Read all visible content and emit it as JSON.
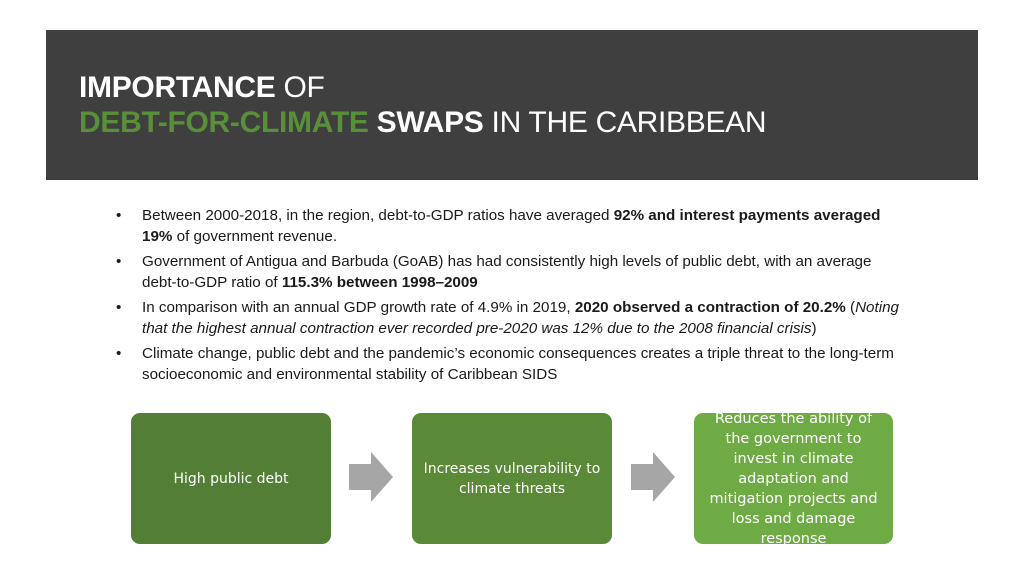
{
  "title": {
    "line1_bold": "IMPORTANCE",
    "line1_rest": " OF",
    "line2_green": "DEBT-FOR-CLIMATE",
    "line2_bold": " SWAPS",
    "line2_rest": " IN THE CARIBBEAN"
  },
  "bullets": [
    {
      "p1": "Between 2000-2018, in the region, debt-to-GDP ratios have averaged ",
      "b1": "92% and interest payments averaged 19%",
      "p2": " of government revenue."
    },
    {
      "p1": "Government of Antigua and Barbuda (GoAB) has had consistently high levels of public debt, with an average debt-to-GDP ratio of ",
      "b1": "115.3% between 1998–2009"
    },
    {
      "p1": "In comparison with an annual GDP growth rate of 4.9% in 2019, ",
      "b1": "2020 observed a contraction of 20.2%",
      "p2": " (",
      "i1": "Noting that the highest annual contraction ever recorded pre-2020 was 12% due to the 2008 financial crisis",
      "p3": ")"
    },
    {
      "p1": "Climate change, public debt and the pandemic’s economic consequences creates a triple threat to the long-term socioeconomic and environmental stability of Caribbean SIDS"
    }
  ],
  "bullet_glyph": "•",
  "flow": {
    "box1": "High public debt",
    "box2": "Increases vulnerability to climate threats",
    "box3": "Reduces the ability of the government to invest in climate adaptation and mitigation projects and loss and damage response"
  },
  "colors": {
    "header_bg": "#3f3f3f",
    "title_green": "#5a8f3a",
    "box1": "#527f35",
    "box2": "#5a8a38",
    "box3": "#6fab45",
    "arrow": "#a6a6a6"
  },
  "icons": {
    "arrow": "right-arrow-icon"
  }
}
